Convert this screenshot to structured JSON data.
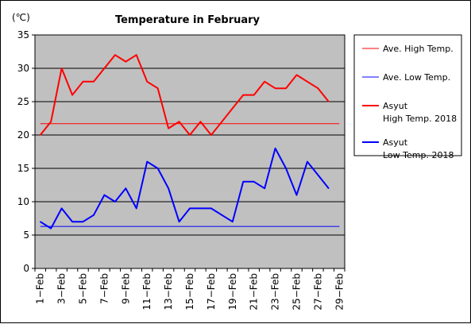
{
  "chart_data": {
    "type": "line",
    "title": "Temperature in February",
    "unit_label": "(℃)",
    "ylim": [
      0,
      35
    ],
    "yticks": [
      0,
      5,
      10,
      15,
      20,
      25,
      30,
      35
    ],
    "x_tick_labels": [
      "1−Feb",
      "3−Feb",
      "5−Feb",
      "7−Feb",
      "9−Feb",
      "11−Feb",
      "13−Feb",
      "15−Feb",
      "17−Feb",
      "19−Feb",
      "21−Feb",
      "23−Feb",
      "25−Feb",
      "27−Feb",
      "29−Feb"
    ],
    "x_tick_days": [
      1,
      3,
      5,
      7,
      9,
      11,
      13,
      15,
      17,
      19,
      21,
      23,
      25,
      27,
      29
    ],
    "x": [
      1,
      2,
      3,
      4,
      5,
      6,
      7,
      8,
      9,
      10,
      11,
      12,
      13,
      14,
      15,
      16,
      17,
      18,
      19,
      20,
      21,
      22,
      23,
      24,
      25,
      26,
      27,
      28
    ],
    "series": [
      {
        "name": "Ave. High Temp.",
        "color": "#ff0000",
        "width": 1,
        "constant": 21.7
      },
      {
        "name": "Ave. Low Temp.",
        "color": "#0000ff",
        "width": 1,
        "constant": 6.3
      },
      {
        "name": "Asyut High Temp. 2018",
        "legend_lines": [
          "Asyut",
          "High Temp. 2018"
        ],
        "color": "#ff0000",
        "width": 2,
        "values": [
          20,
          22,
          30,
          26,
          28,
          28,
          30,
          32,
          31,
          32,
          28,
          27,
          21,
          22,
          20,
          22,
          20,
          22,
          24,
          26,
          26,
          28,
          27,
          27,
          29,
          28,
          27,
          25
        ]
      },
      {
        "name": "Asyut Low Temp. 2018",
        "legend_lines": [
          "Asyut",
          "Low Temp. 2018"
        ],
        "color": "#0000ff",
        "width": 2,
        "values": [
          7,
          6,
          9,
          7,
          7,
          8,
          11,
          10,
          12,
          9,
          16,
          15,
          12,
          7,
          9,
          9,
          9,
          8,
          7,
          13,
          13,
          12,
          18,
          15,
          11,
          16,
          14,
          12
        ]
      }
    ],
    "grid": true,
    "plot_background": "#c0c0c0",
    "legend_position": "right"
  }
}
